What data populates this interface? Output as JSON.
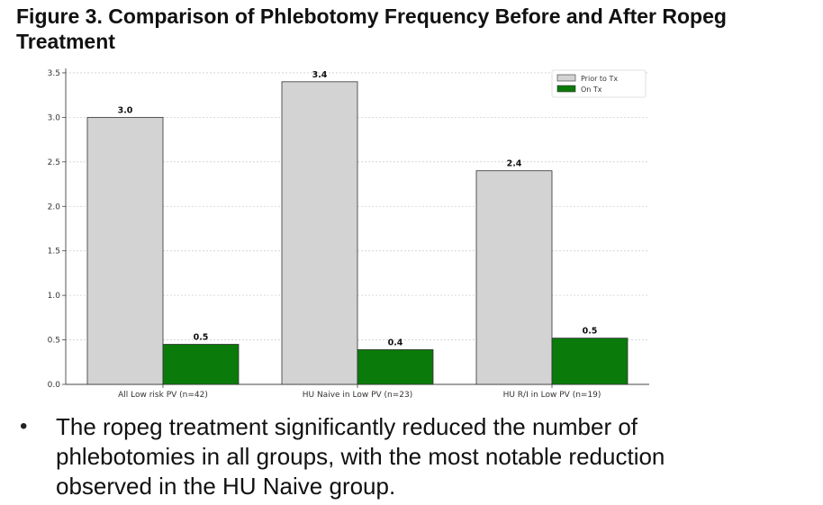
{
  "figure": {
    "title": "Figure 3. Comparison of Phlebotomy Frequency Before and After Ropeg Treatment"
  },
  "chart_data": {
    "type": "bar",
    "categories": [
      "All Low risk PV (n=42)",
      "HU Naive in Low PV (n=23)",
      "HU R/I in Low PV (n=19)"
    ],
    "series": [
      {
        "name": "Prior to Tx",
        "values": [
          3.0,
          3.4,
          2.4
        ],
        "labels": [
          "3.0",
          "3.4",
          "2.4"
        ],
        "color": "#d3d3d3"
      },
      {
        "name": "On Tx",
        "values": [
          0.45,
          0.39,
          0.52
        ],
        "labels": [
          "0.5",
          "0.4",
          "0.5"
        ],
        "color": "#0a7a0a"
      }
    ],
    "yticks": [
      "0.0",
      "0.5",
      "1.0",
      "1.5",
      "2.0",
      "2.5",
      "3.0",
      "3.5"
    ],
    "ylim": [
      0,
      3.55
    ],
    "grid": true,
    "legend_position": "top-right",
    "bar_edge_color": "#333333"
  },
  "bullet": {
    "symbol": "•",
    "text": "The ropeg treatment significantly reduced the number of phlebotomies in all groups, with the most notable reduction observed in the HU Naive group."
  }
}
